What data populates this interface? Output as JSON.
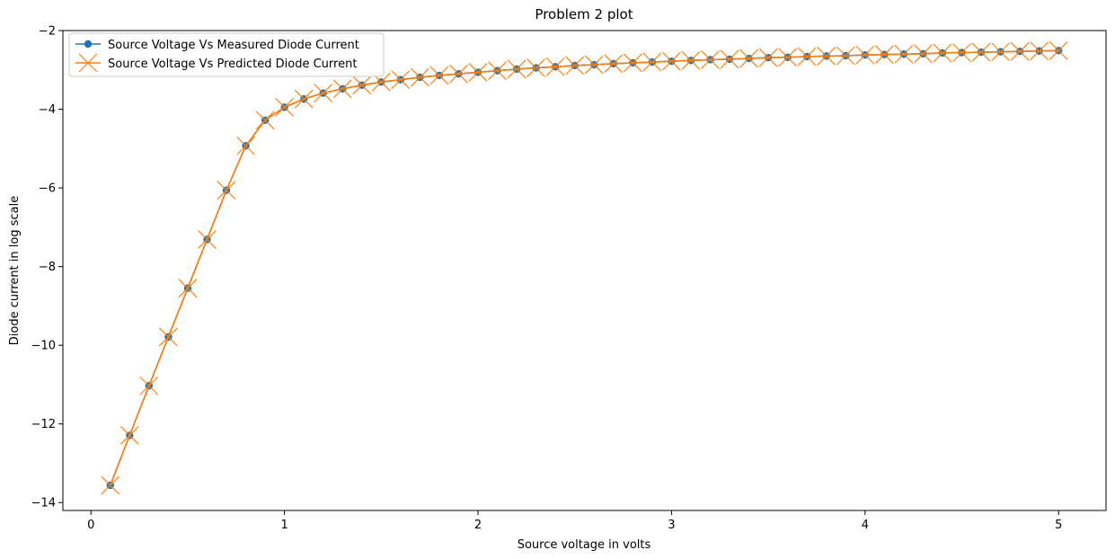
{
  "chart_data": {
    "type": "line",
    "title": "Problem 2 plot",
    "xlabel": "Source voltage in volts",
    "ylabel": "Diode current in log scale",
    "xlim": [
      -0.145,
      5.245
    ],
    "ylim": [
      -14.2,
      -2.0
    ],
    "xticks": [
      0,
      1,
      2,
      3,
      4,
      5
    ],
    "xtick_labels": [
      "0",
      "1",
      "2",
      "3",
      "4",
      "5"
    ],
    "yticks": [
      -14,
      -12,
      -10,
      -8,
      -6,
      -4,
      -2
    ],
    "ytick_labels": [
      "−14",
      "−12",
      "−10",
      "−8",
      "−6",
      "−4",
      "−2"
    ],
    "grid": false,
    "legend_position": "top-left",
    "x": [
      0.1,
      0.2,
      0.3,
      0.4,
      0.5,
      0.6,
      0.7,
      0.8,
      0.9,
      1.0,
      1.1,
      1.2,
      1.3,
      1.4,
      1.5,
      1.6,
      1.7,
      1.8,
      1.9,
      2.0,
      2.1,
      2.2,
      2.3,
      2.4,
      2.5,
      2.6,
      2.7,
      2.8,
      2.9,
      3.0,
      3.1,
      3.2,
      3.3,
      3.4,
      3.5,
      3.6,
      3.7,
      3.8,
      3.9,
      4.0,
      4.1,
      4.2,
      4.3,
      4.4,
      4.5,
      4.6,
      4.7,
      4.8,
      4.9,
      5.0
    ],
    "series": [
      {
        "name": "Source Voltage Vs Measured Diode Current",
        "color": "#1f77b4",
        "marker": "circle",
        "values": [
          -13.56,
          -12.29,
          -11.03,
          -9.79,
          -8.55,
          -7.31,
          -6.06,
          -4.93,
          -4.28,
          -3.95,
          -3.74,
          -3.59,
          -3.48,
          -3.39,
          -3.31,
          -3.25,
          -3.19,
          -3.14,
          -3.1,
          -3.06,
          -3.02,
          -2.98,
          -2.95,
          -2.92,
          -2.89,
          -2.87,
          -2.84,
          -2.82,
          -2.8,
          -2.78,
          -2.76,
          -2.74,
          -2.73,
          -2.71,
          -2.69,
          -2.68,
          -2.66,
          -2.65,
          -2.64,
          -2.62,
          -2.61,
          -2.6,
          -2.59,
          -2.57,
          -2.56,
          -2.55,
          -2.54,
          -2.53,
          -2.52,
          -2.51
        ]
      },
      {
        "name": "Source Voltage Vs Predicted Diode Current",
        "color": "#ff7f0e",
        "marker": "x",
        "values": [
          -13.56,
          -12.29,
          -11.03,
          -9.79,
          -8.55,
          -7.31,
          -6.06,
          -4.93,
          -4.28,
          -3.95,
          -3.74,
          -3.59,
          -3.48,
          -3.39,
          -3.31,
          -3.25,
          -3.19,
          -3.14,
          -3.1,
          -3.06,
          -3.02,
          -2.98,
          -2.95,
          -2.92,
          -2.89,
          -2.87,
          -2.84,
          -2.82,
          -2.8,
          -2.78,
          -2.76,
          -2.74,
          -2.73,
          -2.71,
          -2.69,
          -2.68,
          -2.66,
          -2.65,
          -2.64,
          -2.62,
          -2.61,
          -2.6,
          -2.59,
          -2.57,
          -2.56,
          -2.55,
          -2.54,
          -2.53,
          -2.52,
          -2.51
        ]
      }
    ]
  }
}
